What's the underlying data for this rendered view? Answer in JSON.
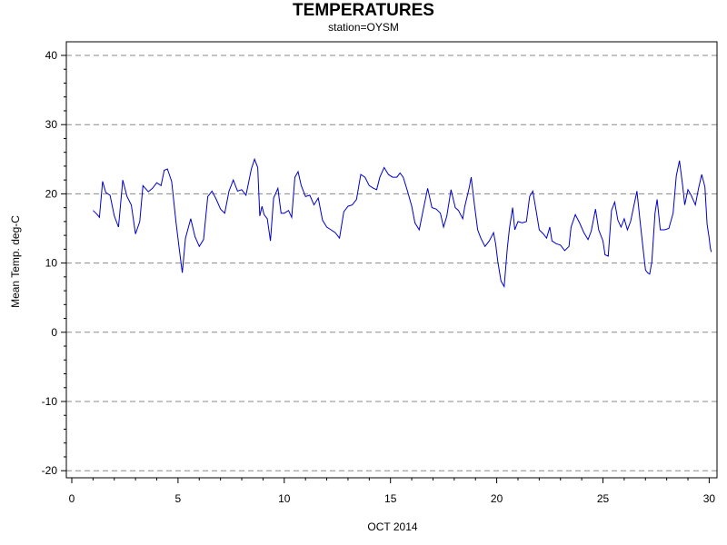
{
  "chart_data": {
    "type": "line",
    "title": "TEMPERATURES",
    "subtitle": "station=OYSM",
    "xlabel": "OCT 2014",
    "ylabel": "Mean Temp. deg-C",
    "xlim": [
      0,
      30.1
    ],
    "ylim": [
      -21,
      41
    ],
    "x_ticks": [
      0,
      5,
      10,
      15,
      20,
      25,
      30
    ],
    "y_ticks": [
      -20,
      -10,
      0,
      10,
      20,
      30,
      40
    ],
    "grid": "horizontal dashed at y ticks",
    "series": [
      {
        "color": "#0000cc",
        "points": [
          [
            1.0,
            17.6
          ],
          [
            1.2,
            17.0
          ],
          [
            1.3,
            16.6
          ],
          [
            1.45,
            21.8
          ],
          [
            1.6,
            20.2
          ],
          [
            1.8,
            19.8
          ],
          [
            2.0,
            16.8
          ],
          [
            2.2,
            15.2
          ],
          [
            2.4,
            22.0
          ],
          [
            2.6,
            19.6
          ],
          [
            2.8,
            18.4
          ],
          [
            3.0,
            14.2
          ],
          [
            3.2,
            16.0
          ],
          [
            3.35,
            21.2
          ],
          [
            3.6,
            20.3
          ],
          [
            3.8,
            20.8
          ],
          [
            4.0,
            21.6
          ],
          [
            4.2,
            21.2
          ],
          [
            4.35,
            23.4
          ],
          [
            4.5,
            23.6
          ],
          [
            4.7,
            21.8
          ],
          [
            4.9,
            16.0
          ],
          [
            5.05,
            12.2
          ],
          [
            5.2,
            8.6
          ],
          [
            5.35,
            13.6
          ],
          [
            5.6,
            16.4
          ],
          [
            5.8,
            13.8
          ],
          [
            6.0,
            12.4
          ],
          [
            6.2,
            13.4
          ],
          [
            6.4,
            19.6
          ],
          [
            6.6,
            20.4
          ],
          [
            6.8,
            19.2
          ],
          [
            7.0,
            17.8
          ],
          [
            7.2,
            17.2
          ],
          [
            7.4,
            20.4
          ],
          [
            7.6,
            22.0
          ],
          [
            7.8,
            20.4
          ],
          [
            8.0,
            20.6
          ],
          [
            8.2,
            19.8
          ],
          [
            8.45,
            23.6
          ],
          [
            8.6,
            25.0
          ],
          [
            8.75,
            23.8
          ],
          [
            8.85,
            16.8
          ],
          [
            8.95,
            18.2
          ],
          [
            9.05,
            17.0
          ],
          [
            9.2,
            16.4
          ],
          [
            9.35,
            13.2
          ],
          [
            9.5,
            19.4
          ],
          [
            9.7,
            20.8
          ],
          [
            9.85,
            17.2
          ],
          [
            10.0,
            17.2
          ],
          [
            10.2,
            17.6
          ],
          [
            10.35,
            16.6
          ],
          [
            10.5,
            22.4
          ],
          [
            10.65,
            23.2
          ],
          [
            10.8,
            21.2
          ],
          [
            11.0,
            19.6
          ],
          [
            11.2,
            19.8
          ],
          [
            11.4,
            18.4
          ],
          [
            11.6,
            19.4
          ],
          [
            11.8,
            16.2
          ],
          [
            12.0,
            15.2
          ],
          [
            12.2,
            14.8
          ],
          [
            12.4,
            14.4
          ],
          [
            12.6,
            13.6
          ],
          [
            12.8,
            17.4
          ],
          [
            13.0,
            18.2
          ],
          [
            13.2,
            18.4
          ],
          [
            13.4,
            19.2
          ],
          [
            13.6,
            22.8
          ],
          [
            13.8,
            22.4
          ],
          [
            14.0,
            21.2
          ],
          [
            14.2,
            20.8
          ],
          [
            14.35,
            20.6
          ],
          [
            14.5,
            22.4
          ],
          [
            14.7,
            23.8
          ],
          [
            14.9,
            22.8
          ],
          [
            15.1,
            22.4
          ],
          [
            15.3,
            22.4
          ],
          [
            15.45,
            23.0
          ],
          [
            15.6,
            22.4
          ],
          [
            15.8,
            20.4
          ],
          [
            16.0,
            18.2
          ],
          [
            16.15,
            15.8
          ],
          [
            16.35,
            14.8
          ],
          [
            16.55,
            17.8
          ],
          [
            16.75,
            20.8
          ],
          [
            16.95,
            18.0
          ],
          [
            17.15,
            17.8
          ],
          [
            17.35,
            17.2
          ],
          [
            17.5,
            15.2
          ],
          [
            17.65,
            16.8
          ],
          [
            17.85,
            20.6
          ],
          [
            18.05,
            18.0
          ],
          [
            18.2,
            17.6
          ],
          [
            18.4,
            16.4
          ],
          [
            18.5,
            18.2
          ],
          [
            18.7,
            20.8
          ],
          [
            18.8,
            22.4
          ],
          [
            18.95,
            18.4
          ],
          [
            19.1,
            14.8
          ],
          [
            19.25,
            13.6
          ],
          [
            19.45,
            12.4
          ],
          [
            19.65,
            13.2
          ],
          [
            19.85,
            14.4
          ],
          [
            19.95,
            12.8
          ],
          [
            20.05,
            10.2
          ],
          [
            20.2,
            7.4
          ],
          [
            20.35,
            6.6
          ],
          [
            20.5,
            12.2
          ],
          [
            20.6,
            15.0
          ],
          [
            20.75,
            18.0
          ],
          [
            20.85,
            14.8
          ],
          [
            21.0,
            16.0
          ],
          [
            21.2,
            15.8
          ],
          [
            21.4,
            16.0
          ],
          [
            21.55,
            19.6
          ],
          [
            21.7,
            20.4
          ],
          [
            21.85,
            17.6
          ],
          [
            22.0,
            14.8
          ],
          [
            22.2,
            14.2
          ],
          [
            22.35,
            13.6
          ],
          [
            22.5,
            15.2
          ],
          [
            22.6,
            13.2
          ],
          [
            22.8,
            12.8
          ],
          [
            23.0,
            12.6
          ],
          [
            23.2,
            11.8
          ],
          [
            23.4,
            12.4
          ],
          [
            23.5,
            15.2
          ],
          [
            23.7,
            17.0
          ],
          [
            23.9,
            15.8
          ],
          [
            24.1,
            14.4
          ],
          [
            24.3,
            13.4
          ],
          [
            24.45,
            14.6
          ],
          [
            24.65,
            17.8
          ],
          [
            24.8,
            14.8
          ],
          [
            25.0,
            13.2
          ],
          [
            25.1,
            11.2
          ],
          [
            25.25,
            11.0
          ],
          [
            25.4,
            17.6
          ],
          [
            25.55,
            18.8
          ],
          [
            25.7,
            16.2
          ],
          [
            25.85,
            15.2
          ],
          [
            26.0,
            16.4
          ],
          [
            26.15,
            14.8
          ],
          [
            26.3,
            16.0
          ],
          [
            26.45,
            18.2
          ],
          [
            26.6,
            20.4
          ],
          [
            26.75,
            16.0
          ],
          [
            26.9,
            11.8
          ],
          [
            27.0,
            9.0
          ],
          [
            27.1,
            8.6
          ],
          [
            27.2,
            8.4
          ],
          [
            27.3,
            10.2
          ],
          [
            27.45,
            17.2
          ],
          [
            27.55,
            19.2
          ],
          [
            27.7,
            14.8
          ],
          [
            27.9,
            14.8
          ],
          [
            28.1,
            15.0
          ],
          [
            28.3,
            17.2
          ],
          [
            28.45,
            22.6
          ],
          [
            28.6,
            24.8
          ],
          [
            28.75,
            21.2
          ],
          [
            28.85,
            18.4
          ],
          [
            29.0,
            20.6
          ],
          [
            29.15,
            19.8
          ],
          [
            29.35,
            18.4
          ],
          [
            29.5,
            20.8
          ],
          [
            29.65,
            22.8
          ],
          [
            29.8,
            21.0
          ],
          [
            29.9,
            15.6
          ],
          [
            30.0,
            13.6
          ],
          [
            30.05,
            12.2
          ],
          [
            30.1,
            11.6
          ]
        ]
      }
    ]
  }
}
